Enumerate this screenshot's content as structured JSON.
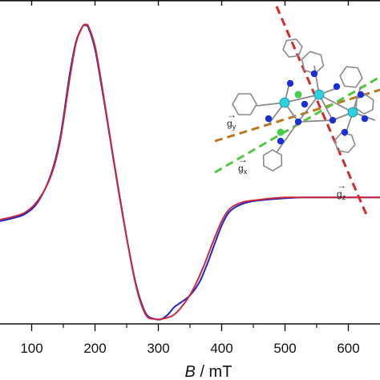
{
  "chart_data": {
    "type": "line",
    "xlabel_italic": "B",
    "xlabel_rest": " / mT",
    "xlim": [
      50,
      650
    ],
    "ylim": [
      -1.0,
      1.0
    ],
    "x_ticks": [
      100,
      200,
      300,
      400,
      500,
      600
    ],
    "x_tick_labels": [
      "100",
      "200",
      "300",
      "400",
      "500",
      "600"
    ],
    "series": [
      {
        "color": "#1f24c8",
        "x": [
          50,
          70,
          90,
          110,
          130,
          145,
          160,
          170,
          180,
          185,
          190,
          200,
          210,
          220,
          235,
          250,
          265,
          280,
          295,
          305,
          315,
          325,
          335,
          350,
          365,
          378,
          390,
          400,
          410,
          420,
          435,
          450,
          470,
          500,
          530,
          560,
          600,
          650
        ],
        "y": [
          -0.34,
          -0.32,
          -0.29,
          -0.21,
          -0.03,
          0.22,
          0.65,
          0.87,
          0.97,
          0.98,
          0.96,
          0.82,
          0.58,
          0.32,
          -0.08,
          -0.45,
          -0.77,
          -0.96,
          -1.0,
          -1.0,
          -0.97,
          -0.92,
          -0.89,
          -0.84,
          -0.75,
          -0.62,
          -0.48,
          -0.37,
          -0.29,
          -0.25,
          -0.22,
          -0.205,
          -0.195,
          -0.185,
          -0.18,
          -0.18,
          -0.18,
          -0.18
        ]
      },
      {
        "color": "#c8283c",
        "x": [
          50,
          70,
          90,
          110,
          130,
          145,
          160,
          170,
          180,
          185,
          190,
          200,
          210,
          220,
          235,
          250,
          265,
          280,
          295,
          305,
          315,
          325,
          340,
          355,
          370,
          380,
          390,
          400,
          410,
          420,
          435,
          450,
          470,
          500,
          530,
          560,
          600,
          650
        ],
        "y": [
          -0.33,
          -0.31,
          -0.28,
          -0.2,
          -0.04,
          0.2,
          0.62,
          0.86,
          0.97,
          0.985,
          0.97,
          0.84,
          0.6,
          0.33,
          -0.07,
          -0.45,
          -0.78,
          -0.97,
          -1.0,
          -1.0,
          -0.99,
          -0.97,
          -0.9,
          -0.8,
          -0.66,
          -0.55,
          -0.44,
          -0.34,
          -0.27,
          -0.235,
          -0.21,
          -0.2,
          -0.19,
          -0.18,
          -0.18,
          -0.18,
          -0.18,
          -0.18
        ]
      }
    ]
  },
  "inset": {
    "labels": {
      "gy_base": "g",
      "gy_sub": "y",
      "gx_base": "g",
      "gx_sub": "x",
      "gz_base": "g",
      "gz_sub": "z"
    },
    "axis_colors": {
      "gz": "#d42a2a",
      "gy": "#b8781e",
      "gx": "#4ec83c"
    },
    "atom_colors": {
      "nitrogen": "#1b2fd6",
      "metal": "#2ed0e0",
      "chlorine": "#43d14a",
      "bond": "#8a8a8a"
    }
  }
}
